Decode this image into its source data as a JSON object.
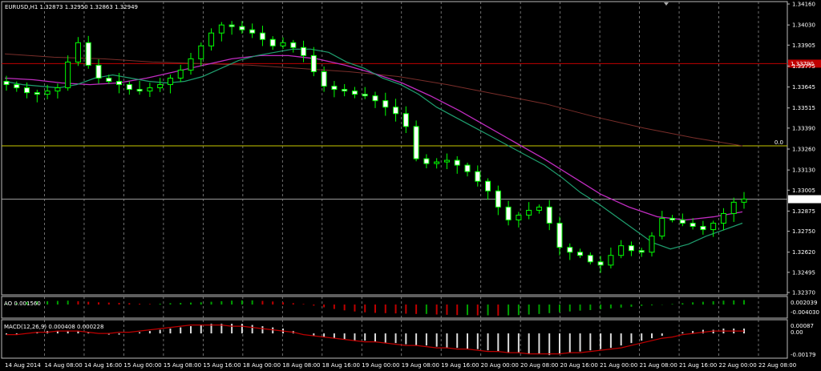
{
  "colors": {
    "background": "#000000",
    "grid": "#8a8a8a",
    "candle_bull": "#00ff00",
    "candle_bear": "#00ff00",
    "ma_fast": "#1f9f6f",
    "ma_mid": "#c02cc0",
    "ma_slow": "#7a2e2a",
    "hline_red": "#c00000",
    "hline_yellow": "#c8c800",
    "hline_gray": "#9a9a9a",
    "ao_up": "#00a000",
    "ao_down": "#c00000",
    "macd_hist": "#dddddd",
    "macd_signal": "#c00000"
  },
  "chart_data": [
    {
      "type": "candlestick",
      "title": "EURUSD,H1  1.32873 1.32950 1.32863 1.32949",
      "symbol": "EURUSD,H1",
      "ylim": [
        1.3237,
        1.3416
      ],
      "y_ticks": [
        "1.34160",
        "1.34030",
        "1.33905",
        "1.33775",
        "1.33645",
        "1.33515",
        "1.33390",
        "1.33260",
        "1.33130",
        "1.33005",
        "1.32875",
        "1.32750",
        "1.32620",
        "1.32495",
        "1.32370"
      ],
      "x_ticks": [
        "14 Aug 2014",
        "14 Aug 08:00",
        "14 Aug 16:00",
        "15 Aug 00:00",
        "15 Aug 08:00",
        "15 Aug 16:00",
        "18 Aug 00:00",
        "18 Aug 08:00",
        "18 Aug 16:00",
        "19 Aug 00:00",
        "19 Aug 08:00",
        "19 Aug 16:00",
        "20 Aug 00:00",
        "20 Aug 08:00",
        "20 Aug 16:00",
        "21 Aug 00:00",
        "21 Aug 08:00",
        "21 Aug 16:00",
        "22 Aug 00:00",
        "22 Aug 08:00"
      ],
      "hlines": [
        {
          "value": 1.3379,
          "label": "1.33790",
          "color": "hline_red"
        },
        {
          "value": 1.3328,
          "label": "0.0",
          "color": "hline_yellow"
        },
        {
          "value": 1.32949,
          "label": "1.32949",
          "color": "hline_gray"
        }
      ],
      "close_path": [
        1.3366,
        1.3364,
        1.3361,
        1.336,
        1.3362,
        1.3364,
        1.338,
        1.3392,
        1.3378,
        1.337,
        1.3368,
        1.3366,
        1.3363,
        1.3362,
        1.3364,
        1.3366,
        1.337,
        1.3375,
        1.3382,
        1.339,
        1.3398,
        1.3403,
        1.3402,
        1.34,
        1.3398,
        1.3394,
        1.339,
        1.3392,
        1.3389,
        1.3384,
        1.3374,
        1.3365,
        1.3363,
        1.3362,
        1.336,
        1.3359,
        1.3356,
        1.3352,
        1.3348,
        1.334,
        1.332,
        1.3317,
        1.3318,
        1.3319,
        1.3316,
        1.3312,
        1.3306,
        1.33,
        1.329,
        1.3282,
        1.3285,
        1.3288,
        1.329,
        1.328,
        1.3265,
        1.3262,
        1.326,
        1.3256,
        1.3254,
        1.326,
        1.3266,
        1.3263,
        1.3262,
        1.3272,
        1.3283,
        1.3282,
        1.328,
        1.3278,
        1.3276,
        1.328,
        1.3286,
        1.3293,
        1.3295
      ],
      "ma_fast": [
        1.3368,
        1.3366,
        1.3365,
        1.3364,
        1.3366,
        1.337,
        1.3372,
        1.337,
        1.3368,
        1.3367,
        1.3368,
        1.3371,
        1.3376,
        1.3381,
        1.3384,
        1.3386,
        1.3388,
        1.3388,
        1.3386,
        1.338,
        1.3376,
        1.337,
        1.3366,
        1.336,
        1.3352,
        1.3346,
        1.334,
        1.3334,
        1.3328,
        1.3322,
        1.3316,
        1.3308,
        1.3299,
        1.3292,
        1.3284,
        1.3276,
        1.3268,
        1.3264,
        1.3267,
        1.3272,
        1.3276,
        1.328
      ],
      "ma_mid": [
        1.337,
        1.3369,
        1.3367,
        1.3366,
        1.3367,
        1.337,
        1.3374,
        1.3378,
        1.3382,
        1.3384,
        1.3384,
        1.3382,
        1.3378,
        1.3373,
        1.3367,
        1.3359,
        1.335,
        1.334,
        1.333,
        1.332,
        1.3309,
        1.3298,
        1.329,
        1.3284,
        1.3282,
        1.3284,
        1.3287
      ],
      "ma_slow": [
        1.3385,
        1.3383,
        1.3382,
        1.338,
        1.3379,
        1.3378,
        1.3376,
        1.3374,
        1.3371,
        1.3366,
        1.336,
        1.3354,
        1.3346,
        1.3339,
        1.3333,
        1.3328
      ]
    },
    {
      "type": "bar",
      "title": "AO 0.001560",
      "y_ticks": [
        "0.002039",
        "-0.004030"
      ],
      "values": [
        0.0004,
        0.0006,
        0.0009,
        0.0011,
        0.0012,
        0.0013,
        0.0014,
        0.0012,
        0.001,
        0.0008,
        0.0007,
        0.0006,
        0.0005,
        0.0003,
        0.0002,
        0.0003,
        0.0005,
        0.0006,
        0.0007,
        0.0008,
        0.001,
        0.0012,
        0.0014,
        0.0015,
        0.0015,
        0.0013,
        0.0011,
        0.0008,
        0.0005,
        0.0002,
        -0.0004,
        -0.001,
        -0.0016,
        -0.0021,
        -0.0025,
        -0.0028,
        -0.003,
        -0.0031,
        -0.0032,
        -0.0033,
        -0.0034,
        -0.0034,
        -0.0036,
        -0.0037,
        -0.0038,
        -0.0038,
        -0.0039,
        -0.0039,
        -0.004,
        -0.0039,
        -0.0038,
        -0.0036,
        -0.0034,
        -0.0031,
        -0.0028,
        -0.0025,
        -0.0022,
        -0.002,
        -0.0017,
        -0.0014,
        -0.0011,
        -0.0008,
        -0.0005,
        -0.0003,
        -0.0001,
        0.0002,
        0.0005,
        0.0008,
        0.001,
        0.0012,
        0.0014,
        0.0015,
        0.0016
      ]
    },
    {
      "type": "bar",
      "title": "MACD(12,26,9) 0.000408 0.000228",
      "y_ticks": [
        "0.00087",
        "0.00",
        "-0.00179"
      ],
      "values": [
        -0.0001,
        -0.0001,
        0.0,
        0.0001,
        0.0002,
        0.0002,
        0.0002,
        0.0002,
        0.0001,
        0.0,
        -0.0001,
        -0.0001,
        0.0,
        0.0001,
        0.0002,
        0.0003,
        0.0004,
        0.0005,
        0.0006,
        0.0007,
        0.0008,
        0.0008,
        0.0008,
        0.0008,
        0.0007,
        0.0006,
        0.0005,
        0.0004,
        0.0002,
        0.0,
        -0.0002,
        -0.0003,
        -0.0004,
        -0.0005,
        -0.0006,
        -0.0006,
        -0.0007,
        -0.0008,
        -0.0008,
        -0.0009,
        -0.001,
        -0.001,
        -0.0011,
        -0.0012,
        -0.0012,
        -0.0013,
        -0.0013,
        -0.0014,
        -0.0015,
        -0.0016,
        -0.0016,
        -0.0017,
        -0.0017,
        -0.0018,
        -0.0017,
        -0.0016,
        -0.0015,
        -0.0014,
        -0.0013,
        -0.0012,
        -0.001,
        -0.0008,
        -0.0006,
        -0.0004,
        -0.0002,
        0.0,
        0.0001,
        0.0002,
        0.0003,
        0.0003,
        0.0004,
        0.0004,
        0.0004
      ],
      "signal": [
        -0.0001,
        -0.0001,
        0.0,
        0.0001,
        0.0001,
        0.0002,
        0.0002,
        0.0002,
        0.0001,
        0.0,
        0.0,
        0.0001,
        0.0001,
        0.0002,
        0.0003,
        0.0004,
        0.0005,
        0.0006,
        0.0007,
        0.0007,
        0.0007,
        0.0007,
        0.0006,
        0.0006,
        0.0005,
        0.0004,
        0.0003,
        0.0002,
        0.0001,
        -0.0001,
        -0.0002,
        -0.0003,
        -0.0004,
        -0.0005,
        -0.0006,
        -0.0007,
        -0.0007,
        -0.0008,
        -0.0009,
        -0.001,
        -0.001,
        -0.0011,
        -0.0012,
        -0.0012,
        -0.0013,
        -0.0013,
        -0.0014,
        -0.0015,
        -0.0015,
        -0.0016,
        -0.0016,
        -0.0017,
        -0.0017,
        -0.0017,
        -0.0017,
        -0.0016,
        -0.0016,
        -0.0015,
        -0.0014,
        -0.0013,
        -0.0012,
        -0.001,
        -0.0008,
        -0.0006,
        -0.0004,
        -0.0003,
        -0.0001,
        0.0,
        0.0001,
        0.0002,
        0.0002,
        0.0002,
        0.0002
      ]
    }
  ]
}
